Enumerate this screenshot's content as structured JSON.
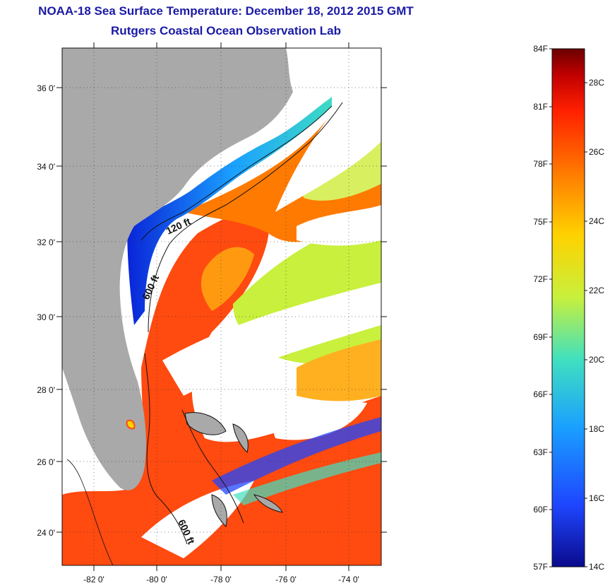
{
  "header": {
    "title": "NOAA-18 Sea Surface Temperature:  December 18, 2012 2015 GMT",
    "subtitle": "Rutgers Coastal Ocean Observation Lab"
  },
  "axes": {
    "lat_labels": [
      "36 0'",
      "34 0'",
      "32 0'",
      "30 0'",
      "28 0'",
      "26 0'",
      "24 0'"
    ],
    "lon_labels": [
      "-82 0'",
      "-80 0'",
      "-78 0'",
      "-76 0'",
      "-74 0'"
    ]
  },
  "contours": {
    "label_120": "120 ft",
    "label_600a": "600 ft",
    "label_600b": "600 ft"
  },
  "colorbar": {
    "f_labels": [
      "84F",
      "81F",
      "78F",
      "75F",
      "72F",
      "69F",
      "66F",
      "63F",
      "60F",
      "57F"
    ],
    "c_labels": [
      "28C",
      "26C",
      "24C",
      "22C",
      "20C",
      "18C",
      "16C",
      "14C"
    ],
    "colors": [
      "#6b0000",
      "#c00000",
      "#ff2000",
      "#ff7a00",
      "#ffd200",
      "#c8f03c",
      "#40e0c0",
      "#1aa0ff",
      "#1e46ff",
      "#0a0a8c"
    ]
  },
  "palette": {
    "land": "#a9a9a9",
    "cloud": "#ffffff",
    "title_color": "#1a1aa6"
  }
}
